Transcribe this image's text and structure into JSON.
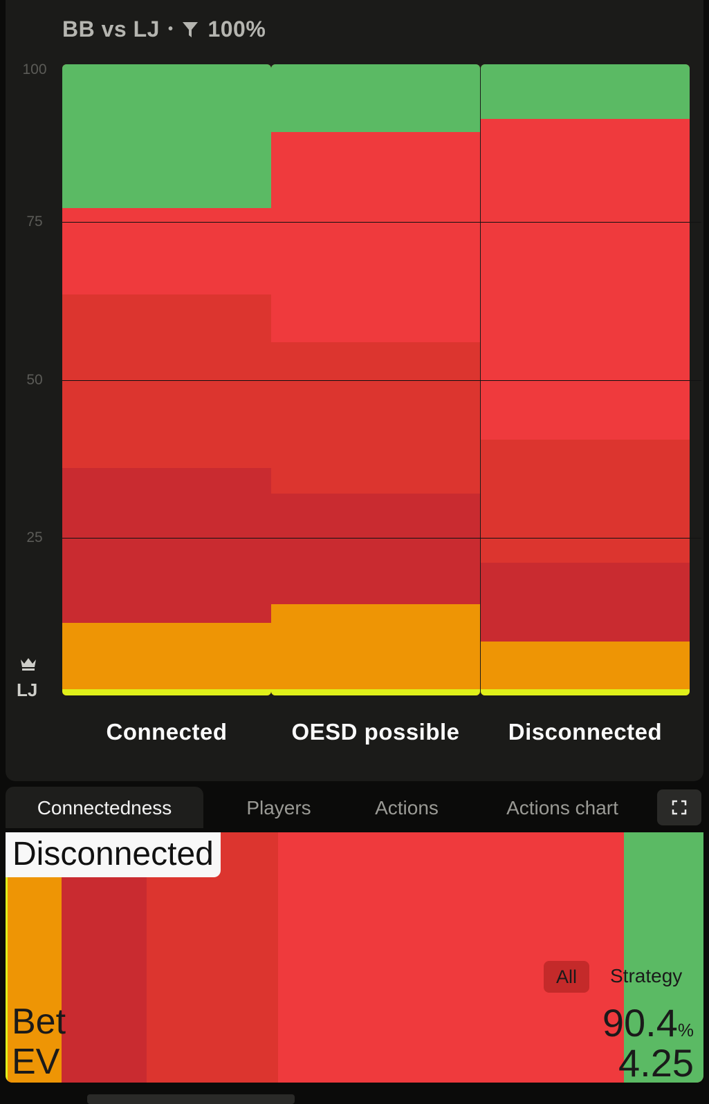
{
  "header": {
    "matchup": "BB vs LJ",
    "separator": "•",
    "filter_icon": "filter-funnel-icon",
    "filter_value": "100%"
  },
  "chart_data": {
    "type": "bar",
    "stacked": true,
    "ylim": [
      0,
      100
    ],
    "yticks": [
      "100",
      "75",
      "50",
      "25"
    ],
    "categories": [
      "Connected",
      "OESD possible",
      "Disconnected"
    ],
    "series": [
      {
        "color": "#dff01a",
        "values": [
          1,
          1,
          1
        ]
      },
      {
        "color": "#ee9505",
        "values": [
          10.5,
          13.5,
          7.5
        ]
      },
      {
        "color": "#c92b30",
        "values": [
          24.5,
          17.5,
          12.5
        ]
      },
      {
        "color": "#dc352f",
        "values": [
          27.5,
          24,
          19.5
        ]
      },
      {
        "color": "#ef3a3d",
        "values": [
          13.7,
          33.3,
          50.8
        ]
      },
      {
        "color": "#5bba64",
        "values": [
          22.8,
          10.7,
          8.7
        ]
      }
    ],
    "grid": true,
    "legend": "none"
  },
  "player": {
    "icon": "crown-icon",
    "label": "LJ"
  },
  "tabs": [
    {
      "label": "Connectedness",
      "active": true
    },
    {
      "label": "Players",
      "active": false
    },
    {
      "label": "Actions",
      "active": false
    },
    {
      "label": "Actions chart",
      "active": false
    }
  ],
  "expand_icon": "expand-icon",
  "detail": {
    "title": "Disconnected",
    "segments": [
      {
        "color": "#dff01a",
        "share": 0.3
      },
      {
        "color": "#ee9505",
        "share": 7.7
      },
      {
        "color": "#c92b30",
        "share": 12.2
      },
      {
        "color": "#dc352f",
        "share": 18.8
      },
      {
        "color": "#ef3a3d",
        "share": 49.6
      },
      {
        "color": "#5bba64",
        "share": 11.4
      }
    ],
    "filter_pill": "All",
    "strategy_label": "Strategy",
    "action_label": "Bet",
    "ev_label": "EV",
    "percent_value": "90.4",
    "percent_unit": "%",
    "ev_value": "4.25"
  }
}
